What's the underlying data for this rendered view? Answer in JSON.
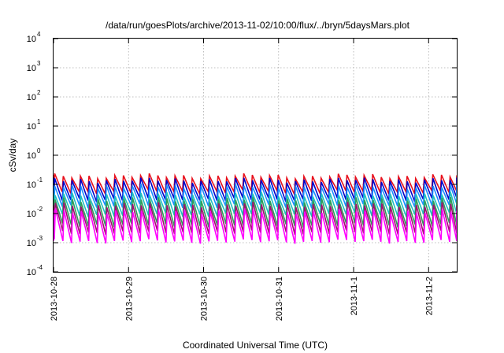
{
  "chart_data": {
    "type": "line",
    "title": "/data/run/goesPlots/archive/2013-11-02/10:00/flux/../bryn/5daysMars.plot",
    "xlabel": "Coordinated Universal Time (UTC)",
    "ylabel": "cSv/day",
    "yscale": "log",
    "ylim": [
      0.0001,
      10000
    ],
    "yticks": [
      {
        "base": "10",
        "exp": "-4",
        "value": 0.0001
      },
      {
        "base": "10",
        "exp": "-3",
        "value": 0.001
      },
      {
        "base": "10",
        "exp": "-2",
        "value": 0.01
      },
      {
        "base": "10",
        "exp": "-1",
        "value": 0.1
      },
      {
        "base": "10",
        "exp": "0",
        "value": 1
      },
      {
        "base": "10",
        "exp": "1",
        "value": 10
      },
      {
        "base": "10",
        "exp": "2",
        "value": 100
      },
      {
        "base": "10",
        "exp": "3",
        "value": 1000
      },
      {
        "base": "10",
        "exp": "4",
        "value": 10000
      }
    ],
    "xlim": [
      "2013-10-28T00:00",
      "2013-11-02T09:00"
    ],
    "xticks": [
      {
        "label": "2013-10-28",
        "value": "2013-10-28T00:00"
      },
      {
        "label": "2013-10-29",
        "value": "2013-10-29T00:00"
      },
      {
        "label": "2013-10-30",
        "value": "2013-10-30T00:00"
      },
      {
        "label": "2013-10-31",
        "value": "2013-10-31T00:00"
      },
      {
        "label": "2013-11-1",
        "value": "2013-11-01T00:00"
      },
      {
        "label": "2013-11-2",
        "value": "2013-11-02T00:00"
      }
    ],
    "grid": true,
    "legend": "none",
    "pattern": {
      "period_hours": 2.75,
      "drop_hours": 0.35
    },
    "series": [
      {
        "color": "#e8101c",
        "peak": 0.19,
        "trough": 0.055
      },
      {
        "color": "#0000c8",
        "peak": 0.14,
        "trough": 0.03
      },
      {
        "color": "#1a8cff",
        "peak": 0.085,
        "trough": 0.018
      },
      {
        "color": "#1fbfbf",
        "peak": 0.045,
        "trough": 0.009
      },
      {
        "color": "#2e9e5a",
        "peak": 0.03,
        "trough": 0.004
      },
      {
        "color": "#a01070",
        "peak": 0.02,
        "trough": 0.0022
      },
      {
        "color": "#ff00ff",
        "peak": 0.012,
        "trough": 0.0011
      }
    ]
  }
}
